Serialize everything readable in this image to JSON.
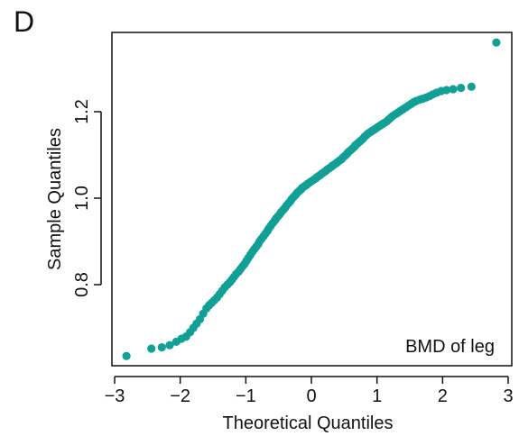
{
  "panel_label": "D",
  "colors": {
    "points": "#119f96",
    "axes": "#111111",
    "background": "#ffffff"
  },
  "chart_data": {
    "type": "scatter",
    "title": "",
    "xlabel": "Theoretical Quantiles",
    "ylabel": "Sample Quantiles",
    "annotation": "BMD of leg",
    "annotation_position": "bottom-right",
    "xlim": [
      -3,
      3
    ],
    "ylim": [
      0.6,
      1.4
    ],
    "x_ticks": [
      -3,
      -2,
      -1,
      0,
      1,
      2,
      3
    ],
    "x_tick_labels": [
      "−3",
      "−2",
      "−1",
      "0",
      "1",
      "2",
      "3"
    ],
    "y_ticks": [
      0.8,
      1.0,
      1.2
    ],
    "y_tick_labels": [
      "0.8",
      "1.0",
      "1.2"
    ],
    "grid": false,
    "legend": "none",
    "series": [
      {
        "type": "qq-points",
        "x": [
          -2.82,
          -2.44,
          -2.28,
          -2.16,
          -2.06,
          -1.98,
          -1.91,
          -1.85,
          -1.8,
          -1.75,
          -1.7,
          -1.65,
          -1.6,
          -1.56,
          -1.52,
          -1.48,
          -1.44,
          -1.4,
          -1.36,
          -1.32,
          -1.28,
          -1.24,
          -1.21,
          -1.18,
          -1.15,
          -1.11,
          -1.08,
          -1.05,
          -1.02,
          -0.99,
          -0.96,
          -0.93,
          -0.9,
          -0.87,
          -0.84,
          -0.81,
          -0.79,
          -0.76,
          -0.73,
          -0.7,
          -0.67,
          -0.65,
          -0.62,
          -0.59,
          -0.56,
          -0.54,
          -0.51,
          -0.48,
          -0.46,
          -0.43,
          -0.4,
          -0.38,
          -0.35,
          -0.32,
          -0.3,
          -0.27,
          -0.24,
          -0.22,
          -0.19,
          -0.16,
          -0.14,
          -0.11,
          -0.08,
          -0.06,
          -0.03,
          0.0,
          0.03,
          0.06,
          0.08,
          0.11,
          0.14,
          0.16,
          0.19,
          0.22,
          0.24,
          0.27,
          0.3,
          0.32,
          0.35,
          0.38,
          0.4,
          0.43,
          0.46,
          0.48,
          0.51,
          0.54,
          0.56,
          0.59,
          0.62,
          0.65,
          0.67,
          0.7,
          0.73,
          0.76,
          0.79,
          0.81,
          0.84,
          0.87,
          0.9,
          0.93,
          0.96,
          0.99,
          1.02,
          1.05,
          1.08,
          1.11,
          1.15,
          1.18,
          1.21,
          1.24,
          1.28,
          1.32,
          1.36,
          1.4,
          1.44,
          1.48,
          1.52,
          1.56,
          1.6,
          1.65,
          1.7,
          1.75,
          1.8,
          1.85,
          1.91,
          1.98,
          2.06,
          2.16,
          2.28,
          2.44,
          2.82
        ],
        "y": [
          0.635,
          0.652,
          0.655,
          0.66,
          0.668,
          0.675,
          0.68,
          0.69,
          0.7,
          0.71,
          0.72,
          0.733,
          0.745,
          0.752,
          0.758,
          0.764,
          0.77,
          0.778,
          0.786,
          0.794,
          0.8,
          0.806,
          0.812,
          0.818,
          0.824,
          0.83,
          0.836,
          0.842,
          0.848,
          0.855,
          0.862,
          0.869,
          0.876,
          0.882,
          0.888,
          0.894,
          0.9,
          0.906,
          0.912,
          0.918,
          0.924,
          0.93,
          0.936,
          0.942,
          0.948,
          0.953,
          0.958,
          0.963,
          0.968,
          0.973,
          0.978,
          0.983,
          0.988,
          0.993,
          0.998,
          1.003,
          1.008,
          1.012,
          1.016,
          1.02,
          1.024,
          1.027,
          1.03,
          1.033,
          1.036,
          1.039,
          1.042,
          1.045,
          1.048,
          1.051,
          1.054,
          1.057,
          1.06,
          1.063,
          1.066,
          1.069,
          1.072,
          1.075,
          1.078,
          1.081,
          1.084,
          1.087,
          1.09,
          1.094,
          1.098,
          1.102,
          1.106,
          1.11,
          1.114,
          1.118,
          1.122,
          1.126,
          1.13,
          1.134,
          1.138,
          1.142,
          1.146,
          1.15,
          1.153,
          1.156,
          1.159,
          1.162,
          1.165,
          1.168,
          1.171,
          1.174,
          1.178,
          1.182,
          1.186,
          1.19,
          1.194,
          1.198,
          1.202,
          1.206,
          1.21,
          1.214,
          1.218,
          1.222,
          1.225,
          1.228,
          1.23,
          1.233,
          1.236,
          1.24,
          1.244,
          1.248,
          1.25,
          1.252,
          1.255,
          1.258,
          1.36
        ]
      }
    ]
  }
}
